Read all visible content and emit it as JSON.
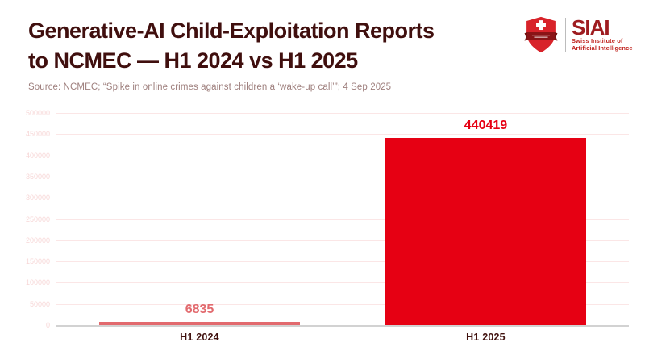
{
  "header": {
    "title_line1": "Generative-AI Child-Exploitation Reports",
    "title_line2": "to NCMEC — H1 2024 vs H1 2025",
    "source": "Source: NCMEC; “Spike in online crimes against children a ‘wake-up call’”; 4 Sep 2025"
  },
  "logo": {
    "name": "SIAI",
    "subtitle_line1": "Swiss Institute of",
    "subtitle_line2": "Artificial Intelligence",
    "icon": "swiss-shield-icon",
    "colors": {
      "shield_red": "#d8232a",
      "banner_dark_red": "#7e1315",
      "cross_white": "#ffffff",
      "name_red": "#9e1c20",
      "subtitle_red": "#c0241f",
      "divider_gray": "#bcbcbc"
    }
  },
  "chart_data": {
    "type": "bar",
    "title": "Generative-AI Child-Exploitation Reports to NCMEC — H1 2024 vs H1 2025",
    "categories": [
      "H1 2024",
      "H1 2025"
    ],
    "values": [
      6835,
      440419
    ],
    "value_labels": [
      "6835",
      "440419"
    ],
    "bar_colors": [
      "#e26a6e",
      "#e60013"
    ],
    "value_label_colors": [
      "#e26a6e",
      "#e60013"
    ],
    "xlabel": "",
    "ylabel": "",
    "ylim": [
      0,
      500000
    ],
    "yticks": [
      0,
      50000,
      100000,
      150000,
      200000,
      250000,
      300000,
      350000,
      400000,
      450000,
      500000
    ],
    "grid": true,
    "legend": false,
    "gridline_color": "#fbe6e6",
    "ytick_label_color": "#f7d7d7",
    "xtick_label_color": "#41120f",
    "axis_line_color": "#d2d2d2"
  }
}
